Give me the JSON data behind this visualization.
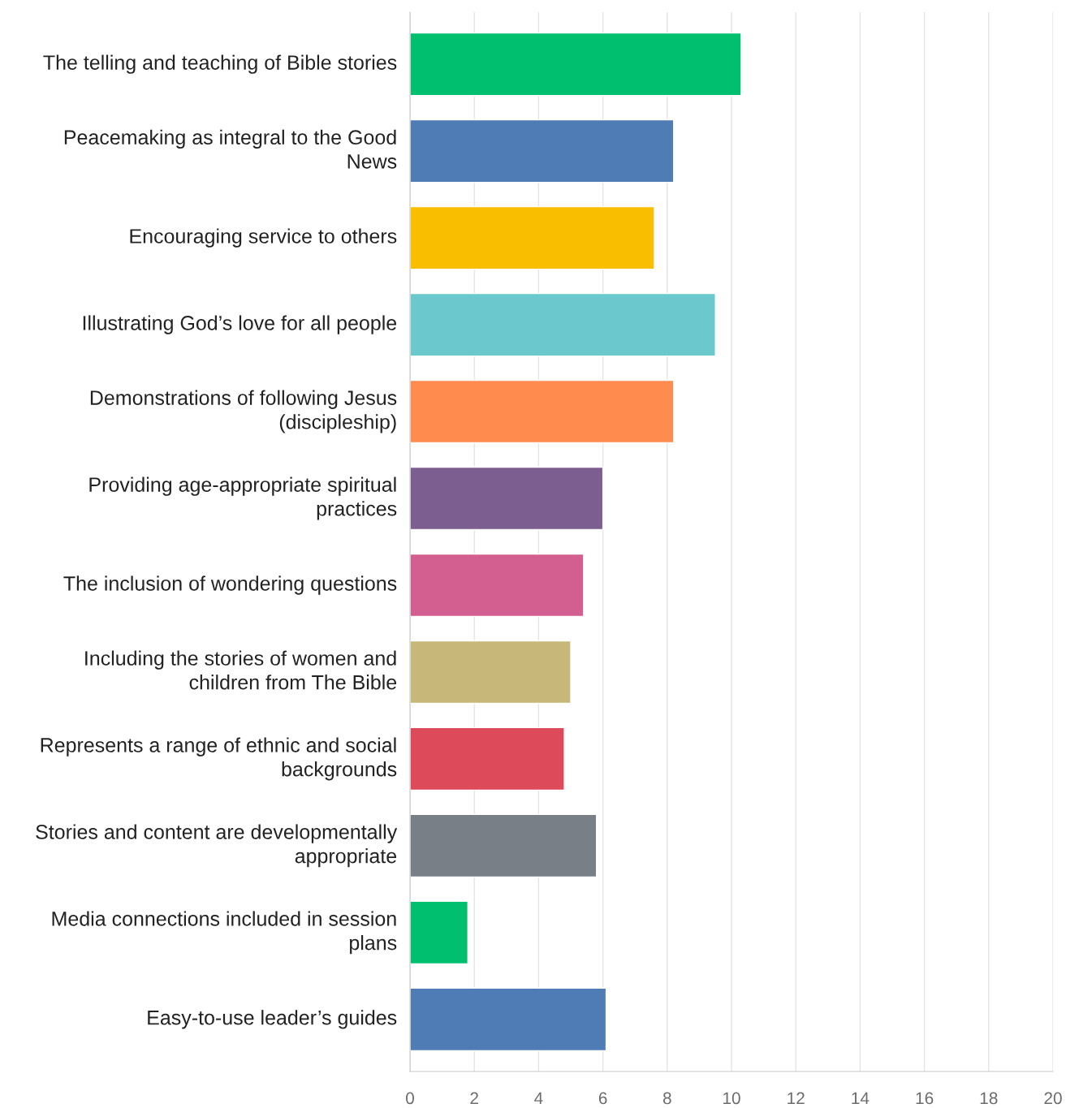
{
  "chart_data": {
    "type": "bar",
    "orientation": "horizontal",
    "categories": [
      "The telling and teaching of Bible stories",
      "Peacemaking as integral to the Good News",
      "Encouraging service to others",
      "Illustrating God’s love for all people",
      "Demonstrations of following Jesus (discipleship)",
      "Providing age-appropriate spiritual practices",
      "The inclusion of wondering questions",
      "Including the stories of women and children from The Bible",
      "Represents a range of ethnic and social backgrounds",
      "Stories and content are developmentally appropriate",
      "Media connections included in session plans",
      "Easy-to-use leader’s guides"
    ],
    "values": [
      10.3,
      8.2,
      7.6,
      9.5,
      8.2,
      6.0,
      5.4,
      5.0,
      4.8,
      5.8,
      1.8,
      6.1
    ],
    "colors": [
      "#00bf6f",
      "#507cb6",
      "#f9be00",
      "#6bc8cd",
      "#ff8b4f",
      "#7d5e90",
      "#d25f90",
      "#c7b879",
      "#dd4b5b",
      "#787f87",
      "#00bf6f",
      "#507cb6"
    ],
    "xlim": [
      0,
      20
    ],
    "xticks": [
      0,
      2,
      4,
      6,
      8,
      10,
      12,
      14,
      16,
      18,
      20
    ],
    "grid": "x"
  }
}
